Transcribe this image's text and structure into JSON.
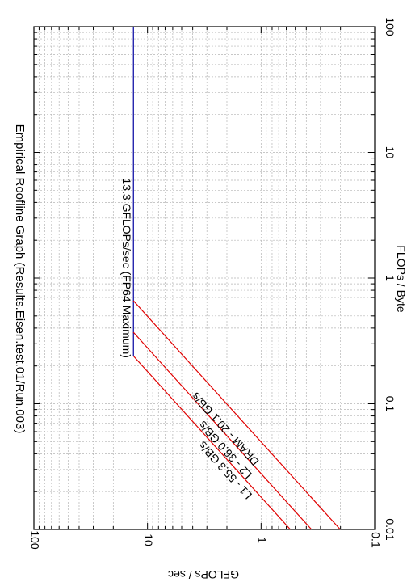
{
  "chart_data": {
    "type": "line",
    "title": "Empirical Roofline Graph (Results.Eisen.test.01/Run.003)",
    "xlabel": "FLOPs / Byte",
    "ylabel": "GFLOPs / sec",
    "xscale": "log",
    "yscale": "log",
    "xlim": [
      0.01,
      100
    ],
    "ylim": [
      0.1,
      100
    ],
    "x_ticks": [
      "0.01",
      "0.1",
      "1",
      "10",
      "100"
    ],
    "y_ticks": [
      "0.1",
      "1",
      "10",
      "100"
    ],
    "grid": true,
    "orientation": "rotated-90-clockwise",
    "series": [
      {
        "name": "13.3 GFLOPs/sec (FP64 Maximum)",
        "color": "#0000a0",
        "x": [
          0.24,
          100
        ],
        "y": [
          13.3,
          13.3
        ]
      },
      {
        "name": "L1 - 55.3 GB/s",
        "color": "#e00000",
        "x": [
          0.01,
          0.24
        ],
        "y": [
          0.553,
          13.3
        ]
      },
      {
        "name": "L2 - 36.0 GB/s",
        "color": "#e00000",
        "x": [
          0.01,
          0.37
        ],
        "y": [
          0.36,
          13.3
        ]
      },
      {
        "name": "DRAM - 20.1 GB/s",
        "color": "#e00000",
        "x": [
          0.01,
          0.66
        ],
        "y": [
          0.201,
          13.3
        ]
      }
    ],
    "labels": [
      {
        "series": 0,
        "text": "13.3 GFLOPs/sec (FP64 Maximum)",
        "x": 1.2,
        "y": 16.5,
        "color": "#0000a0"
      },
      {
        "series": 1,
        "text": "L1 - 55.3 GB/s",
        "x": 0.031,
        "y": 1.95,
        "color": "#a00000"
      },
      {
        "series": 2,
        "text": "L2 - 36.0 GB/s",
        "x": 0.045,
        "y": 1.95,
        "color": "#a00000"
      },
      {
        "series": 3,
        "text": "DRAM - 20.1 GB/s",
        "x": 0.066,
        "y": 1.95,
        "color": "#a00000"
      }
    ]
  }
}
